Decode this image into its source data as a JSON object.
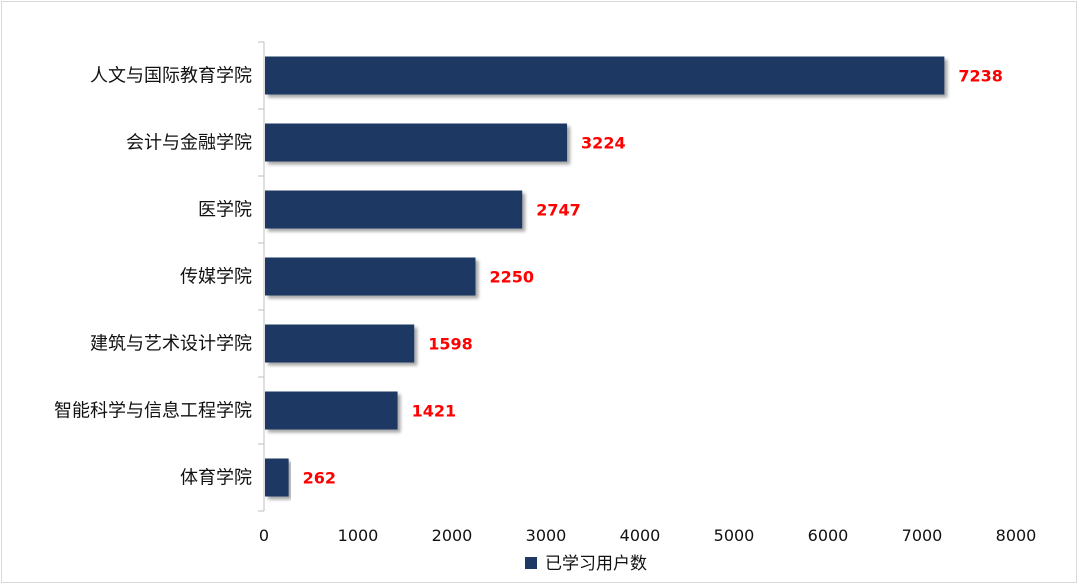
{
  "chart_data": {
    "type": "bar",
    "orientation": "horizontal",
    "categories": [
      "人文与国际教育学院",
      "会计与金融学院",
      "医学院",
      "传媒学院",
      "建筑与艺术设计学院",
      "智能科学与信息工程学院",
      "体育学院"
    ],
    "series": [
      {
        "name": "已学习用户数",
        "values": [
          7238,
          3224,
          2747,
          2250,
          1598,
          1421,
          262
        ]
      }
    ],
    "xlim": [
      0,
      8000
    ],
    "x_ticks": [
      0,
      1000,
      2000,
      3000,
      4000,
      5000,
      6000,
      7000,
      8000
    ],
    "title": "",
    "xlabel": "",
    "ylabel": "",
    "grid": false,
    "legend_position": "bottom",
    "data_labels": true,
    "bar_color": "#1f3864",
    "label_color": "#ff0000"
  }
}
